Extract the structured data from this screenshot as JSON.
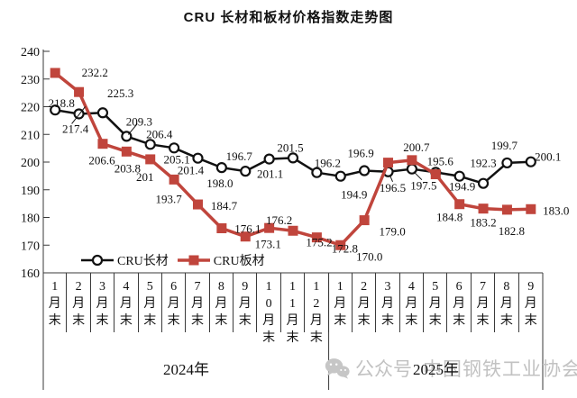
{
  "chart_data": {
    "type": "line",
    "title": "CRU 长材和板材价格指数走势图",
    "ylim": [
      160,
      240
    ],
    "ytick_step": 10,
    "ytick_labels": [
      "240",
      "230",
      "220",
      "210",
      "200",
      "190",
      "180",
      "170",
      "160"
    ],
    "x_categories": [
      "1月末",
      "2月末",
      "3月末",
      "4月末",
      "5月末",
      "6月末",
      "7月末",
      "8月末",
      "9月末",
      "10月末",
      "11月末",
      "12月末",
      "1月末",
      "2月末",
      "3月末",
      "4月末",
      "5月末",
      "6月末",
      "7月末",
      "8月末",
      "9月末"
    ],
    "x_groups": [
      {
        "label": "2024年",
        "count": 12
      },
      {
        "label": "2025年",
        "count": 9
      }
    ],
    "grid": false,
    "legend_position": "inside-bottom-left",
    "series": [
      {
        "name": "CRU长材",
        "color": "#111111",
        "marker": "open-circle",
        "values": [
          218.8,
          217.4,
          217.8,
          209.3,
          206.4,
          205.1,
          201.4,
          198.0,
          196.7,
          201.1,
          201.5,
          196.2,
          194.9,
          196.9,
          196.5,
          197.5,
          196.3,
          194.9,
          192.3,
          199.7,
          200.1
        ],
        "labels": [
          "218.8",
          "217.4",
          "",
          "209.3",
          "206.4",
          "205.1",
          "201.4",
          "198.0",
          "196.7",
          "201.1",
          "201.5",
          "196.2",
          "194.9",
          "196.9",
          "196.5",
          "197.5",
          "",
          "194.9",
          "192.3",
          "199.7",
          "200.1"
        ]
      },
      {
        "name": "CRU板材",
        "color": "#c0453c",
        "marker": "filled-square",
        "values": [
          232.2,
          225.3,
          206.6,
          203.8,
          201,
          193.7,
          184.7,
          176.1,
          173.1,
          176.2,
          175.2,
          172.8,
          170.0,
          179.0,
          199.8,
          200.7,
          195.6,
          184.8,
          183.2,
          182.8,
          183.0
        ],
        "labels": [
          "232.2",
          "225.3",
          "206.6",
          "203.8",
          "201",
          "193.7",
          "184.7",
          "176.1",
          "173.1",
          "176.2",
          "175.2",
          "172.8",
          "170.0",
          "179.0",
          "",
          "200.7",
          "195.6",
          "184.8",
          "183.2",
          "182.8",
          "183.0"
        ]
      }
    ]
  },
  "watermark": {
    "icon": "wechat-icon",
    "account_prefix": "公众号",
    "account_name": "中国钢铁工业协会"
  }
}
